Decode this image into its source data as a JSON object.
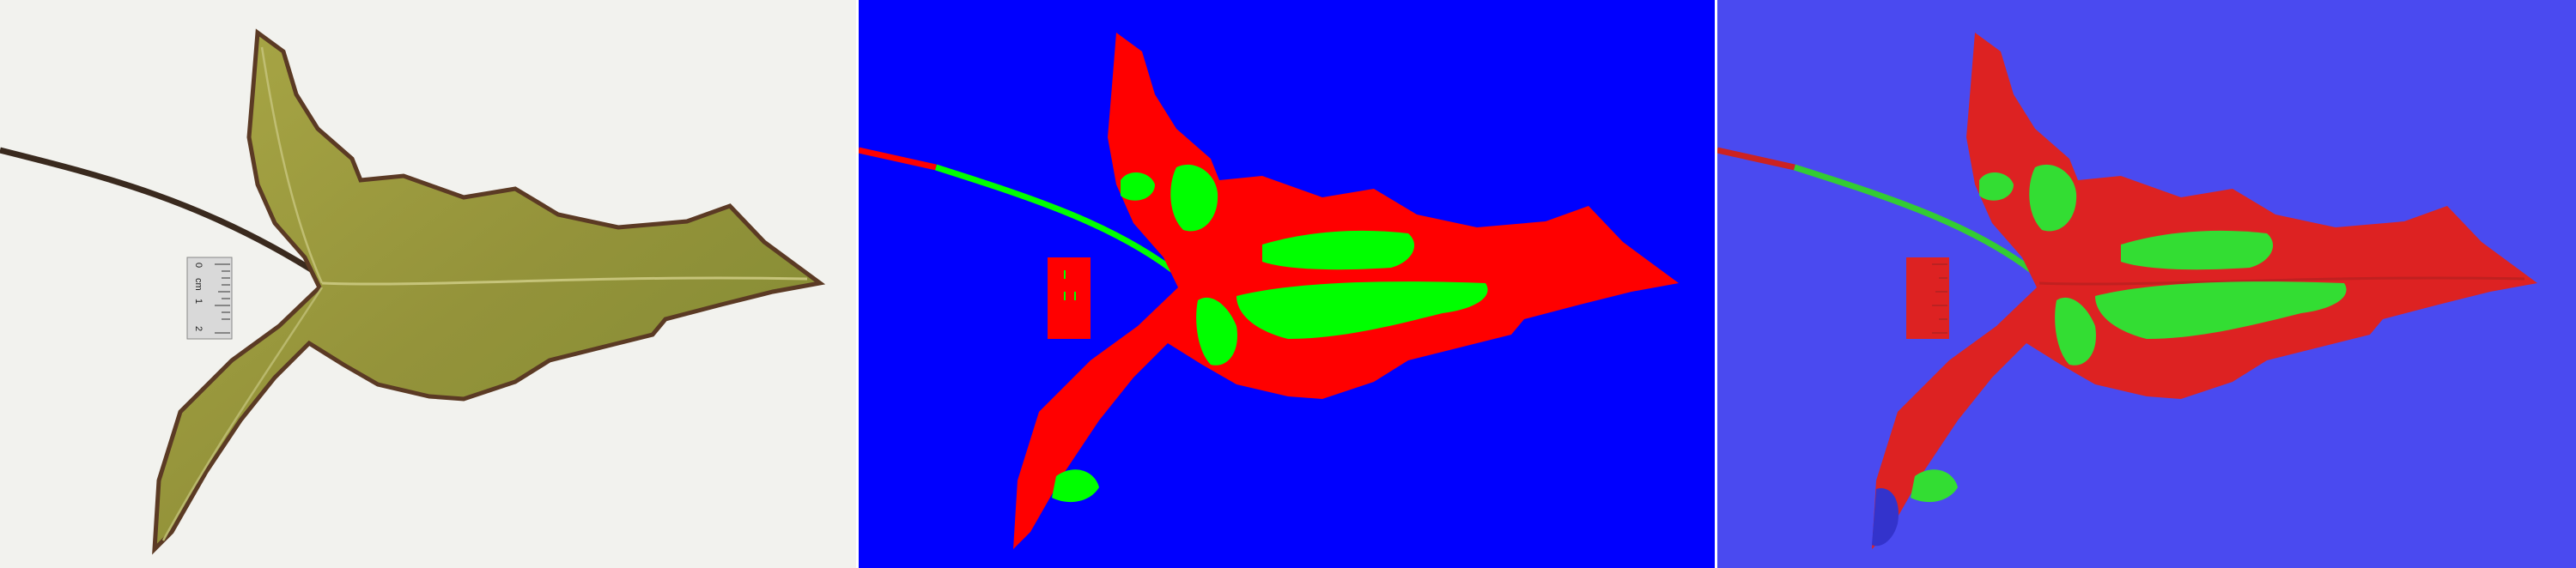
{
  "panels": [
    {
      "id": "photo",
      "kind": "photograph"
    },
    {
      "id": "mask",
      "kind": "segmentation-mask"
    },
    {
      "id": "overlay",
      "kind": "mask-overlay"
    }
  ],
  "colors": {
    "photo_background": "#f2f2ee",
    "leaf_fill": "#9a9a3a",
    "leaf_edge": "#5b3a24",
    "petiole": "#3a2a1e",
    "mask_background": "#0000ff",
    "mask_leaf": "#ff0000",
    "mask_lesion": "#00ff00",
    "overlay_background": "#4a4af0",
    "overlay_leaf": "#dd2222",
    "overlay_lesion": "#33dd33",
    "ruler": "#d9d9d9"
  },
  "ruler": {
    "unit_label": "cm",
    "tick_labels": [
      "0",
      "1",
      "2"
    ]
  }
}
